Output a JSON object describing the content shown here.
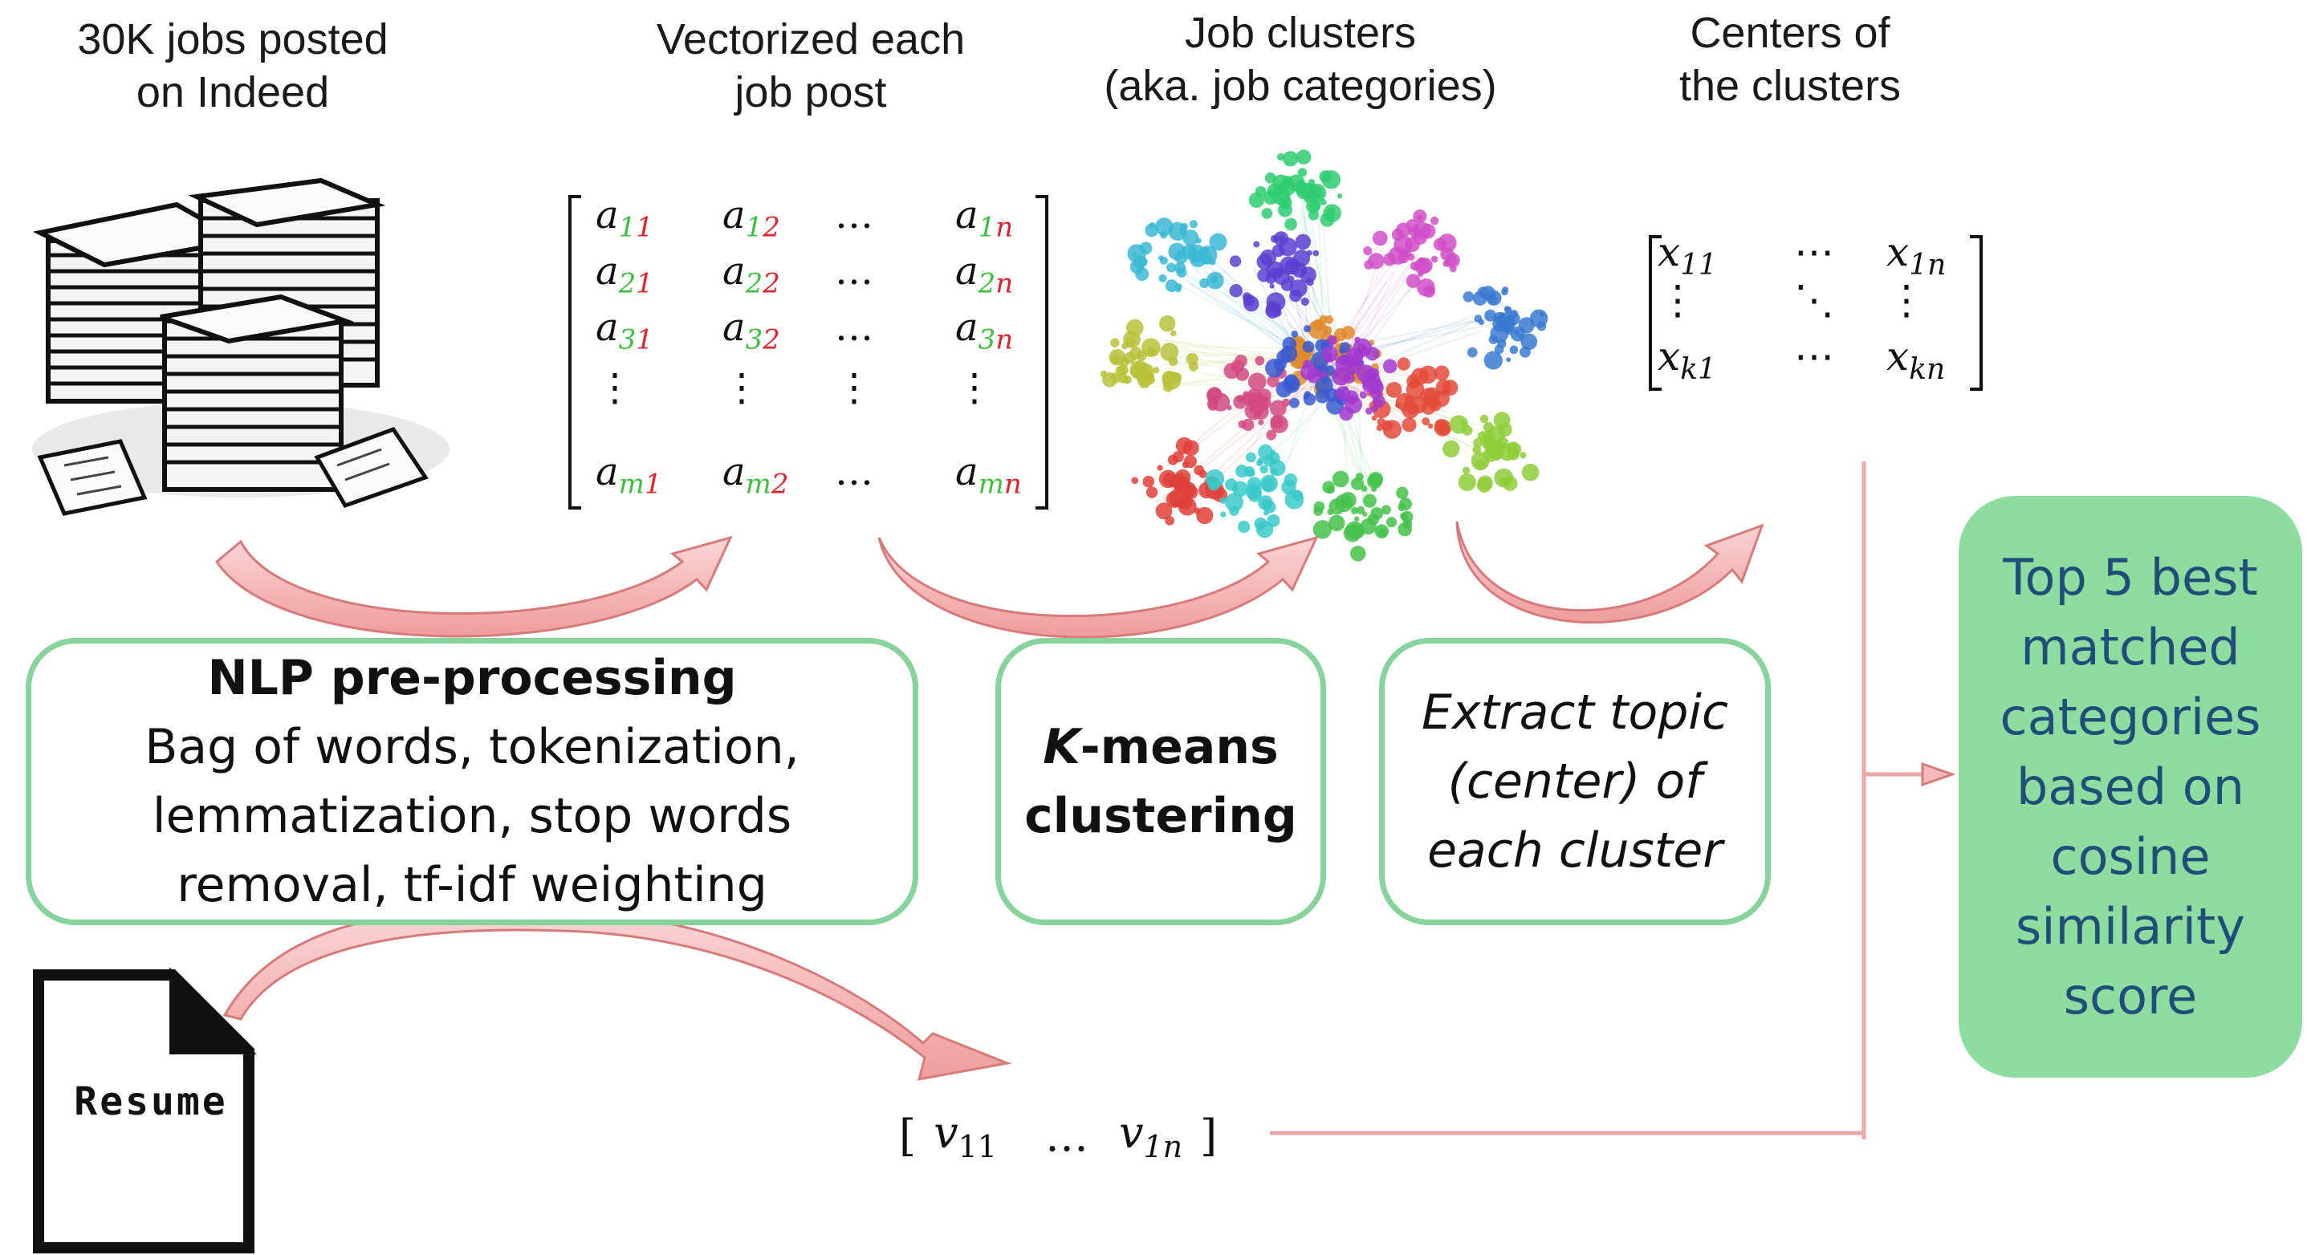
{
  "titles": {
    "jobs": [
      "30K jobs posted",
      "on Indeed"
    ],
    "vector": [
      "Vectorized each",
      "job post"
    ],
    "clusters": [
      "Job clusters",
      "(aka. job categories)"
    ],
    "centers": [
      "Centers of",
      "the clusters"
    ]
  },
  "boxes": {
    "nlp": {
      "heading": "NLP pre-processing",
      "lines": [
        "Bag of words, tokenization,",
        "lemmatization, stop words",
        "removal, tf-idf weighting"
      ]
    },
    "kmeans": {
      "k": "K",
      "rest1": "-means",
      "line2": "clustering"
    },
    "extract": {
      "lines": [
        "Extract topic",
        "(center) of",
        "each cluster"
      ]
    },
    "result": {
      "lines": [
        "Top 5 best",
        "matched",
        "categories",
        "based on",
        "cosine",
        "similarity",
        "score"
      ]
    }
  },
  "resume": {
    "label": "Resume"
  },
  "matrix_a": {
    "rows": [
      [
        {
          "b": "a",
          "s": "11",
          "c": "mix1"
        },
        {
          "b": "a",
          "s": "12",
          "c": "mix1"
        },
        {
          "b": "…",
          "s": "",
          "c": ""
        },
        {
          "b": "a",
          "s": "1n",
          "c": "mix1"
        }
      ],
      [
        {
          "b": "a",
          "s": "21",
          "c": "mix1"
        },
        {
          "b": "a",
          "s": "22",
          "c": "mix1"
        },
        {
          "b": "…",
          "s": "",
          "c": ""
        },
        {
          "b": "a",
          "s": "2n",
          "c": "mix1"
        }
      ],
      [
        {
          "b": "a",
          "s": "31",
          "c": "mix1"
        },
        {
          "b": "a",
          "s": "32",
          "c": "mix1"
        },
        {
          "b": "…",
          "s": "",
          "c": ""
        },
        {
          "b": "a",
          "s": "3n",
          "c": "mix1"
        }
      ],
      [
        {
          "b": "⋮",
          "s": "",
          "c": ""
        },
        {
          "b": "⋮",
          "s": "",
          "c": ""
        },
        {
          "b": "⋮",
          "s": "",
          "c": ""
        },
        {
          "b": "⋮",
          "s": "",
          "c": ""
        }
      ],
      [
        {
          "b": "a",
          "s": "m1",
          "c": "mix2"
        },
        {
          "b": "a",
          "s": "m2",
          "c": "mix2"
        },
        {
          "b": "…",
          "s": "",
          "c": ""
        },
        {
          "b": "a",
          "s": "mn",
          "c": "mix2"
        }
      ]
    ]
  },
  "matrix_x": {
    "rows": [
      [
        {
          "b": "x",
          "s": "11"
        },
        {
          "b": "⋯",
          "s": ""
        },
        {
          "b": "x",
          "s": "1n"
        }
      ],
      [
        {
          "b": "⋮",
          "s": ""
        },
        {
          "b": "⋱",
          "s": ""
        },
        {
          "b": "⋮",
          "s": ""
        }
      ],
      [
        {
          "b": "x",
          "s": "k1"
        },
        {
          "b": "⋯",
          "s": ""
        },
        {
          "b": "x",
          "s": "kn"
        }
      ]
    ]
  },
  "vector_v": {
    "open": "[",
    "v1": "v",
    "s1": "11",
    "dots": "…",
    "v2": "v",
    "s2": "1n",
    "close": "]"
  },
  "colors": {
    "box_border": "#86d39c",
    "result_fill": "#8fdca0",
    "result_text": "#1f4e79",
    "arrow_fill": "#f6b9b9",
    "arrow_stroke": "#d77a7a",
    "sub_green": "#3fbf3f",
    "sub_red": "#e0242b"
  },
  "icons": {
    "papers": "paper-stack-icon",
    "resume": "document-icon",
    "clusters": "network-graph-icon"
  }
}
